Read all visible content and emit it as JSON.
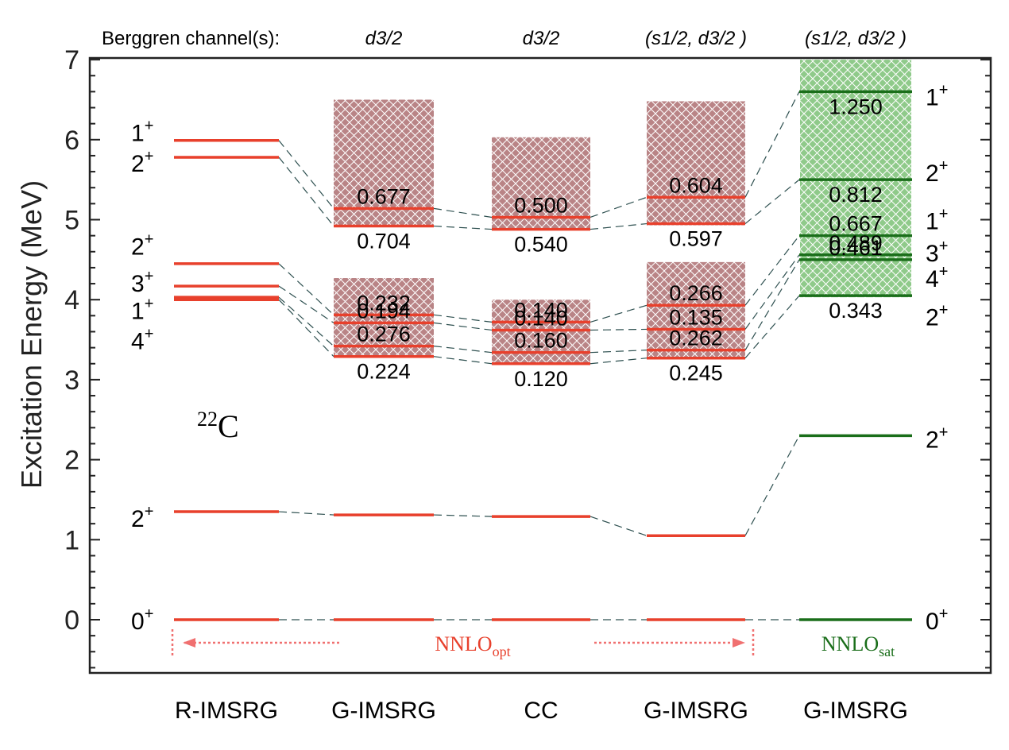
{
  "chart_data": {
    "type": "level-scheme",
    "ylabel": "Excitation Energy (MeV)",
    "ylim": [
      -0.65,
      7
    ],
    "yticks": [
      "0",
      "1",
      "2",
      "3",
      "4",
      "5",
      "6",
      "7"
    ],
    "nucleus": {
      "mass": "22",
      "element": "C"
    },
    "channel_header": "Berggren channel(s):",
    "interaction_labels": {
      "opt_base": "NNLO",
      "opt_sub": "opt",
      "sat_base": "NNLO",
      "sat_sub": "sat"
    },
    "colors": {
      "opt": "#e8402c",
      "sat": "#1a6e1a",
      "opt_band": "#b98486",
      "sat_band": "#8fca8a",
      "connector": "#2e5050",
      "axis": "#222222"
    },
    "methods": [
      {
        "name": "R-IMSRG",
        "channel": "",
        "interaction": "opt",
        "bands": [],
        "levels": [
          {
            "J": "0",
            "E": 0.0
          },
          {
            "J": "2",
            "E": 1.35
          },
          {
            "J": "4",
            "E": 4.0
          },
          {
            "J": "1",
            "E": 4.03
          },
          {
            "J": "3",
            "E": 4.17
          },
          {
            "J": "2",
            "E": 4.45
          },
          {
            "J": "2",
            "E": 5.78
          },
          {
            "J": "1",
            "E": 5.99
          }
        ],
        "spin_labels": [
          {
            "J": "0",
            "sup": "+",
            "E": 0.0
          },
          {
            "J": "2",
            "sup": "+",
            "E": 1.28
          },
          {
            "J": "4",
            "sup": "+",
            "E": 3.5
          },
          {
            "J": "1",
            "sup": "+",
            "E": 3.88
          },
          {
            "J": "3",
            "sup": "+",
            "E": 4.22
          },
          {
            "J": "2",
            "sup": "+",
            "E": 4.68
          },
          {
            "J": "2",
            "sup": "+",
            "E": 5.72
          },
          {
            "J": "1",
            "sup": "+",
            "E": 6.1
          }
        ]
      },
      {
        "name": "G-IMSRG",
        "channel": "d3/2",
        "interaction": "opt",
        "bands": [
          [
            3.28,
            4.27
          ],
          [
            4.92,
            6.5
          ]
        ],
        "levels": [
          {
            "J": "0",
            "E": 0.0
          },
          {
            "J": "2",
            "E": 1.31
          },
          {
            "J": "4",
            "E": 3.29,
            "width": "0.224"
          },
          {
            "J": "1",
            "E": 3.42,
            "width": "0.276"
          },
          {
            "J": "3",
            "E": 3.71,
            "width": "0.194"
          },
          {
            "J": "2",
            "E": 3.81,
            "width": "0.232"
          },
          {
            "J": "2",
            "E": 4.92,
            "width": "0.704"
          },
          {
            "J": "1",
            "E": 5.14,
            "width": "0.677"
          }
        ]
      },
      {
        "name": "CC",
        "channel": "d3/2",
        "interaction": "opt",
        "bands": [
          [
            3.19,
            4.0
          ],
          [
            4.87,
            6.03
          ]
        ],
        "levels": [
          {
            "J": "0",
            "E": 0.0
          },
          {
            "J": "2",
            "E": 1.29
          },
          {
            "J": "4",
            "E": 3.2,
            "width": "0.120"
          },
          {
            "J": "1",
            "E": 3.34,
            "width": "0.160"
          },
          {
            "J": "3",
            "E": 3.62,
            "width": "0.140"
          },
          {
            "J": "2",
            "E": 3.72,
            "width": "0.140"
          },
          {
            "J": "2",
            "E": 4.88,
            "width": "0.540"
          },
          {
            "J": "1",
            "E": 5.03,
            "width": "0.500"
          }
        ]
      },
      {
        "name": "G-IMSRG",
        "channel": "(s1/2, d3/2 )",
        "interaction": "opt",
        "bands": [
          [
            3.26,
            4.47
          ],
          [
            4.93,
            6.48
          ]
        ],
        "levels": [
          {
            "J": "0",
            "E": 0.0
          },
          {
            "J": "2",
            "E": 1.05
          },
          {
            "J": "4",
            "E": 3.27,
            "width": "0.245"
          },
          {
            "J": "1",
            "E": 3.37,
            "width": "0.262"
          },
          {
            "J": "3",
            "E": 3.63,
            "width": "0.135"
          },
          {
            "J": "2",
            "E": 3.93,
            "width": "0.266"
          },
          {
            "J": "2",
            "E": 4.95,
            "width": "0.597"
          },
          {
            "J": "1",
            "E": 5.28,
            "width": "0.604"
          }
        ]
      },
      {
        "name": "G-IMSRG",
        "channel": "(s1/2, d3/2 )",
        "interaction": "sat",
        "bands": [
          [
            4.03,
            7.0
          ]
        ],
        "levels": [
          {
            "J": "0",
            "E": 0.0
          },
          {
            "J": "2",
            "E": 2.3
          },
          {
            "J": "2",
            "E": 4.05,
            "width": "0.343"
          },
          {
            "J": "4",
            "E": 4.5,
            "width": "0.461"
          },
          {
            "J": "3",
            "E": 4.56,
            "width": "0.489"
          },
          {
            "J": "1",
            "E": 4.8,
            "width": "0.667"
          },
          {
            "J": "2",
            "E": 5.5,
            "width": "0.812"
          },
          {
            "J": "1",
            "E": 6.6,
            "width": "1.250"
          }
        ],
        "spin_labels": [
          {
            "J": "0",
            "sup": "+",
            "E": 0.0
          },
          {
            "J": "2",
            "sup": "+",
            "E": 2.27
          },
          {
            "J": "2",
            "sup": "+",
            "E": 3.8
          },
          {
            "J": "4",
            "sup": "+",
            "E": 4.28
          },
          {
            "J": "3",
            "sup": "+",
            "E": 4.6
          },
          {
            "J": "1",
            "sup": "+",
            "E": 5.0
          },
          {
            "J": "2",
            "sup": "+",
            "E": 5.6
          },
          {
            "J": "1",
            "sup": "+",
            "E": 6.55
          }
        ]
      }
    ]
  }
}
